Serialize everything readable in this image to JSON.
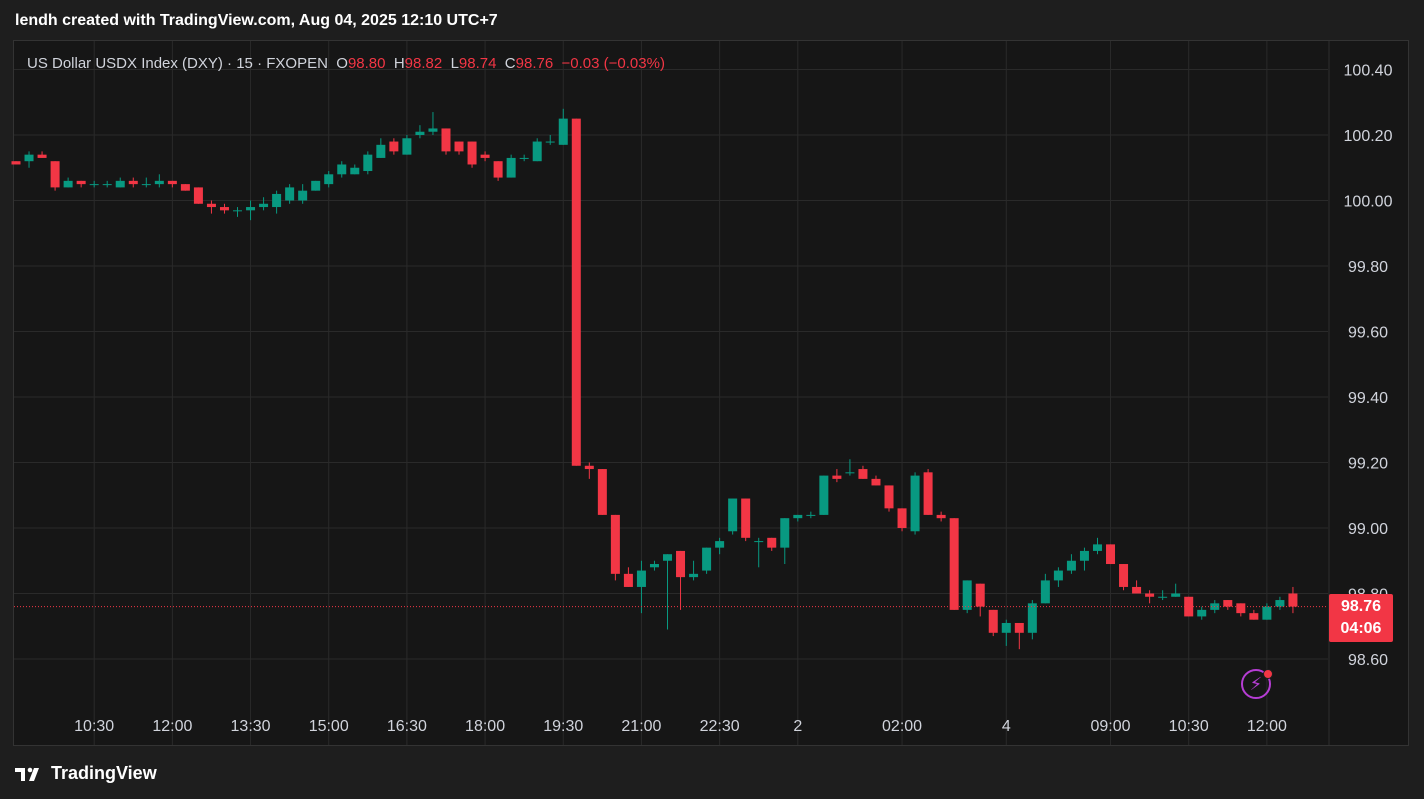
{
  "header": {
    "credit": "lendh created with TradingView.com, Aug 04, 2025 12:10 UTC+7"
  },
  "legend": {
    "symbol": "US Dollar USDX Index (DXY) · 15 · FXOPEN",
    "o_label": "O",
    "o_value": "98.80",
    "h_label": "H",
    "h_value": "98.82",
    "l_label": "L",
    "l_value": "98.74",
    "c_label": "C",
    "c_value": "98.76",
    "change": "−0.03 (−0.03%)"
  },
  "last_price": {
    "price": "98.76",
    "countdown": "04:06"
  },
  "footer": {
    "brand": "TradingView"
  },
  "colors": {
    "up": "#089981",
    "down": "#f23645",
    "background": "#161616",
    "grid": "#2a2a2a",
    "text": "#d1d4dc",
    "bolt": "#b63dd4"
  },
  "icons": [
    "tradingview-logo-icon",
    "lightning-icon"
  ],
  "chart_data": {
    "type": "candlestick",
    "title": "US Dollar USDX Index (DXY) · 15 · FXOPEN",
    "ylim": [
      98.45,
      100.48
    ],
    "y_ticks": [
      "100.40",
      "100.20",
      "100.00",
      "99.80",
      "99.60",
      "99.40",
      "99.20",
      "99.00",
      "98.80",
      "98.60"
    ],
    "y_tick_values": [
      100.4,
      100.2,
      100.0,
      99.8,
      99.6,
      99.4,
      99.2,
      99.0,
      98.8,
      98.6
    ],
    "x_tick_labels": [
      "10:30",
      "12:00",
      "13:30",
      "15:00",
      "16:30",
      "18:00",
      "19:30",
      "21:00",
      "22:30",
      "2",
      "02:00",
      "4",
      "09:00",
      "10:30",
      "12:00"
    ],
    "x_tick_index": [
      6,
      12,
      18,
      24,
      30,
      36,
      42,
      48,
      54,
      60,
      68,
      76,
      84,
      90,
      96
    ],
    "last_price": 98.76,
    "grid": true,
    "candles": [
      [
        100.12,
        100.12,
        100.11,
        100.11
      ],
      [
        100.12,
        100.15,
        100.1,
        100.14
      ],
      [
        100.14,
        100.15,
        100.13,
        100.13
      ],
      [
        100.12,
        100.12,
        100.03,
        100.04
      ],
      [
        100.04,
        100.07,
        100.04,
        100.06
      ],
      [
        100.06,
        100.06,
        100.04,
        100.05
      ],
      [
        100.05,
        100.06,
        100.04,
        100.05
      ],
      [
        100.05,
        100.06,
        100.04,
        100.05
      ],
      [
        100.04,
        100.07,
        100.04,
        100.06
      ],
      [
        100.06,
        100.07,
        100.04,
        100.05
      ],
      [
        100.05,
        100.07,
        100.04,
        100.05
      ],
      [
        100.05,
        100.08,
        100.04,
        100.06
      ],
      [
        100.06,
        100.06,
        100.04,
        100.05
      ],
      [
        100.05,
        100.05,
        100.03,
        100.03
      ],
      [
        100.04,
        100.04,
        99.99,
        99.99
      ],
      [
        99.99,
        100.0,
        99.96,
        99.98
      ],
      [
        99.98,
        99.99,
        99.96,
        99.97
      ],
      [
        99.97,
        99.98,
        99.95,
        99.97
      ],
      [
        99.97,
        100.0,
        99.94,
        99.98
      ],
      [
        99.98,
        100.01,
        99.97,
        99.99
      ],
      [
        99.98,
        100.03,
        99.96,
        100.02
      ],
      [
        100.0,
        100.05,
        99.99,
        100.04
      ],
      [
        100.0,
        100.05,
        99.99,
        100.03
      ],
      [
        100.03,
        100.06,
        100.03,
        100.06
      ],
      [
        100.05,
        100.09,
        100.04,
        100.08
      ],
      [
        100.08,
        100.12,
        100.07,
        100.11
      ],
      [
        100.08,
        100.11,
        100.08,
        100.1
      ],
      [
        100.09,
        100.15,
        100.08,
        100.14
      ],
      [
        100.13,
        100.19,
        100.13,
        100.17
      ],
      [
        100.18,
        100.19,
        100.14,
        100.15
      ],
      [
        100.14,
        100.2,
        100.14,
        100.19
      ],
      [
        100.2,
        100.23,
        100.19,
        100.21
      ],
      [
        100.21,
        100.27,
        100.2,
        100.22
      ],
      [
        100.22,
        100.22,
        100.14,
        100.15
      ],
      [
        100.18,
        100.18,
        100.14,
        100.15
      ],
      [
        100.18,
        100.18,
        100.1,
        100.11
      ],
      [
        100.14,
        100.15,
        100.12,
        100.13
      ],
      [
        100.12,
        100.12,
        100.06,
        100.07
      ],
      [
        100.07,
        100.14,
        100.07,
        100.13
      ],
      [
        100.13,
        100.14,
        100.12,
        100.13
      ],
      [
        100.12,
        100.19,
        100.12,
        100.18
      ],
      [
        100.18,
        100.2,
        100.17,
        100.18
      ],
      [
        100.17,
        100.28,
        100.17,
        100.25
      ],
      [
        100.25,
        100.25,
        99.19,
        99.19
      ],
      [
        99.19,
        99.2,
        99.15,
        99.18
      ],
      [
        99.18,
        99.18,
        99.04,
        99.04
      ],
      [
        99.04,
        99.04,
        98.84,
        98.86
      ],
      [
        98.86,
        98.88,
        98.82,
        98.82
      ],
      [
        98.82,
        98.9,
        98.74,
        98.87
      ],
      [
        98.88,
        98.9,
        98.87,
        98.89
      ],
      [
        98.9,
        98.92,
        98.69,
        98.92
      ],
      [
        98.93,
        98.93,
        98.75,
        98.85
      ],
      [
        98.85,
        98.9,
        98.84,
        98.86
      ],
      [
        98.87,
        98.94,
        98.86,
        98.94
      ],
      [
        98.94,
        98.97,
        98.92,
        98.96
      ],
      [
        98.99,
        99.09,
        98.98,
        99.09
      ],
      [
        99.09,
        99.09,
        98.96,
        98.97
      ],
      [
        98.96,
        98.97,
        98.88,
        98.96
      ],
      [
        98.97,
        98.97,
        98.93,
        98.94
      ],
      [
        98.94,
        99.03,
        98.89,
        99.03
      ],
      [
        99.03,
        99.04,
        99.02,
        99.04
      ],
      [
        99.04,
        99.05,
        99.03,
        99.04
      ],
      [
        99.04,
        99.16,
        99.04,
        99.16
      ],
      [
        99.16,
        99.18,
        99.14,
        99.15
      ],
      [
        99.17,
        99.21,
        99.16,
        99.17
      ],
      [
        99.18,
        99.19,
        99.15,
        99.15
      ],
      [
        99.15,
        99.16,
        99.13,
        99.13
      ],
      [
        99.13,
        99.13,
        99.05,
        99.06
      ],
      [
        99.06,
        99.06,
        98.99,
        99.0
      ],
      [
        98.99,
        99.17,
        98.98,
        99.16
      ],
      [
        99.17,
        99.18,
        99.04,
        99.04
      ],
      [
        99.04,
        99.05,
        99.02,
        99.03
      ],
      [
        99.03,
        99.03,
        98.75,
        98.75
      ],
      [
        98.75,
        98.84,
        98.74,
        98.84
      ],
      [
        98.83,
        98.83,
        98.73,
        98.76
      ],
      [
        98.75,
        98.75,
        98.67,
        98.68
      ],
      [
        98.68,
        98.72,
        98.64,
        98.71
      ],
      [
        98.71,
        98.71,
        98.63,
        98.68
      ],
      [
        98.68,
        98.78,
        98.66,
        98.77
      ],
      [
        98.77,
        98.86,
        98.77,
        98.84
      ],
      [
        98.84,
        98.88,
        98.82,
        98.87
      ],
      [
        98.87,
        98.92,
        98.86,
        98.9
      ],
      [
        98.9,
        98.94,
        98.87,
        98.93
      ],
      [
        98.93,
        98.97,
        98.92,
        98.95
      ],
      [
        98.95,
        98.95,
        98.89,
        98.89
      ],
      [
        98.89,
        98.89,
        98.81,
        98.82
      ],
      [
        98.82,
        98.84,
        98.8,
        98.8
      ],
      [
        98.8,
        98.81,
        98.77,
        98.79
      ],
      [
        98.79,
        98.81,
        98.78,
        98.79
      ],
      [
        98.79,
        98.83,
        98.79,
        98.8
      ],
      [
        98.79,
        98.79,
        98.73,
        98.73
      ],
      [
        98.73,
        98.76,
        98.72,
        98.75
      ],
      [
        98.75,
        98.78,
        98.74,
        98.77
      ],
      [
        98.78,
        98.78,
        98.75,
        98.76
      ],
      [
        98.77,
        98.77,
        98.73,
        98.74
      ],
      [
        98.74,
        98.75,
        98.72,
        98.72
      ],
      [
        98.72,
        98.77,
        98.72,
        98.76
      ],
      [
        98.76,
        98.79,
        98.75,
        98.78
      ],
      [
        98.8,
        98.82,
        98.74,
        98.76
      ]
    ]
  }
}
